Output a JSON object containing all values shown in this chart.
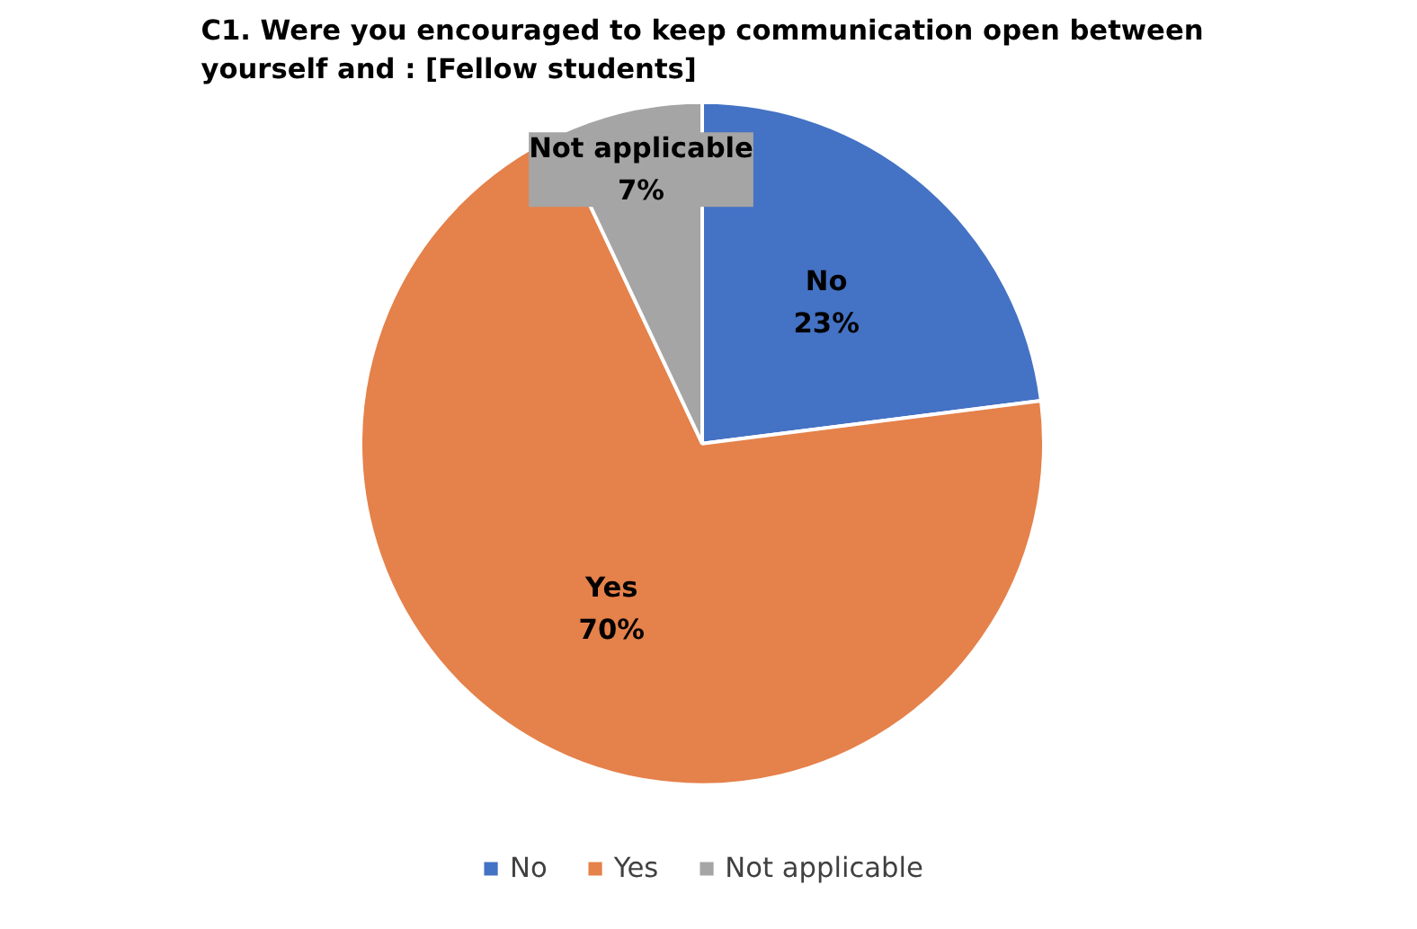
{
  "chart_data": {
    "type": "pie",
    "title": "C1. Were you encouraged to keep communication open between yourself and : [Fellow students]",
    "categories": [
      "No",
      "Yes",
      "Not applicable"
    ],
    "values": [
      23,
      70,
      7
    ],
    "colors": [
      "#4472c4",
      "#e5814a",
      "#a5a5a5"
    ],
    "value_labels": [
      "23%",
      "70%",
      "7%"
    ],
    "legend": "bottom"
  }
}
